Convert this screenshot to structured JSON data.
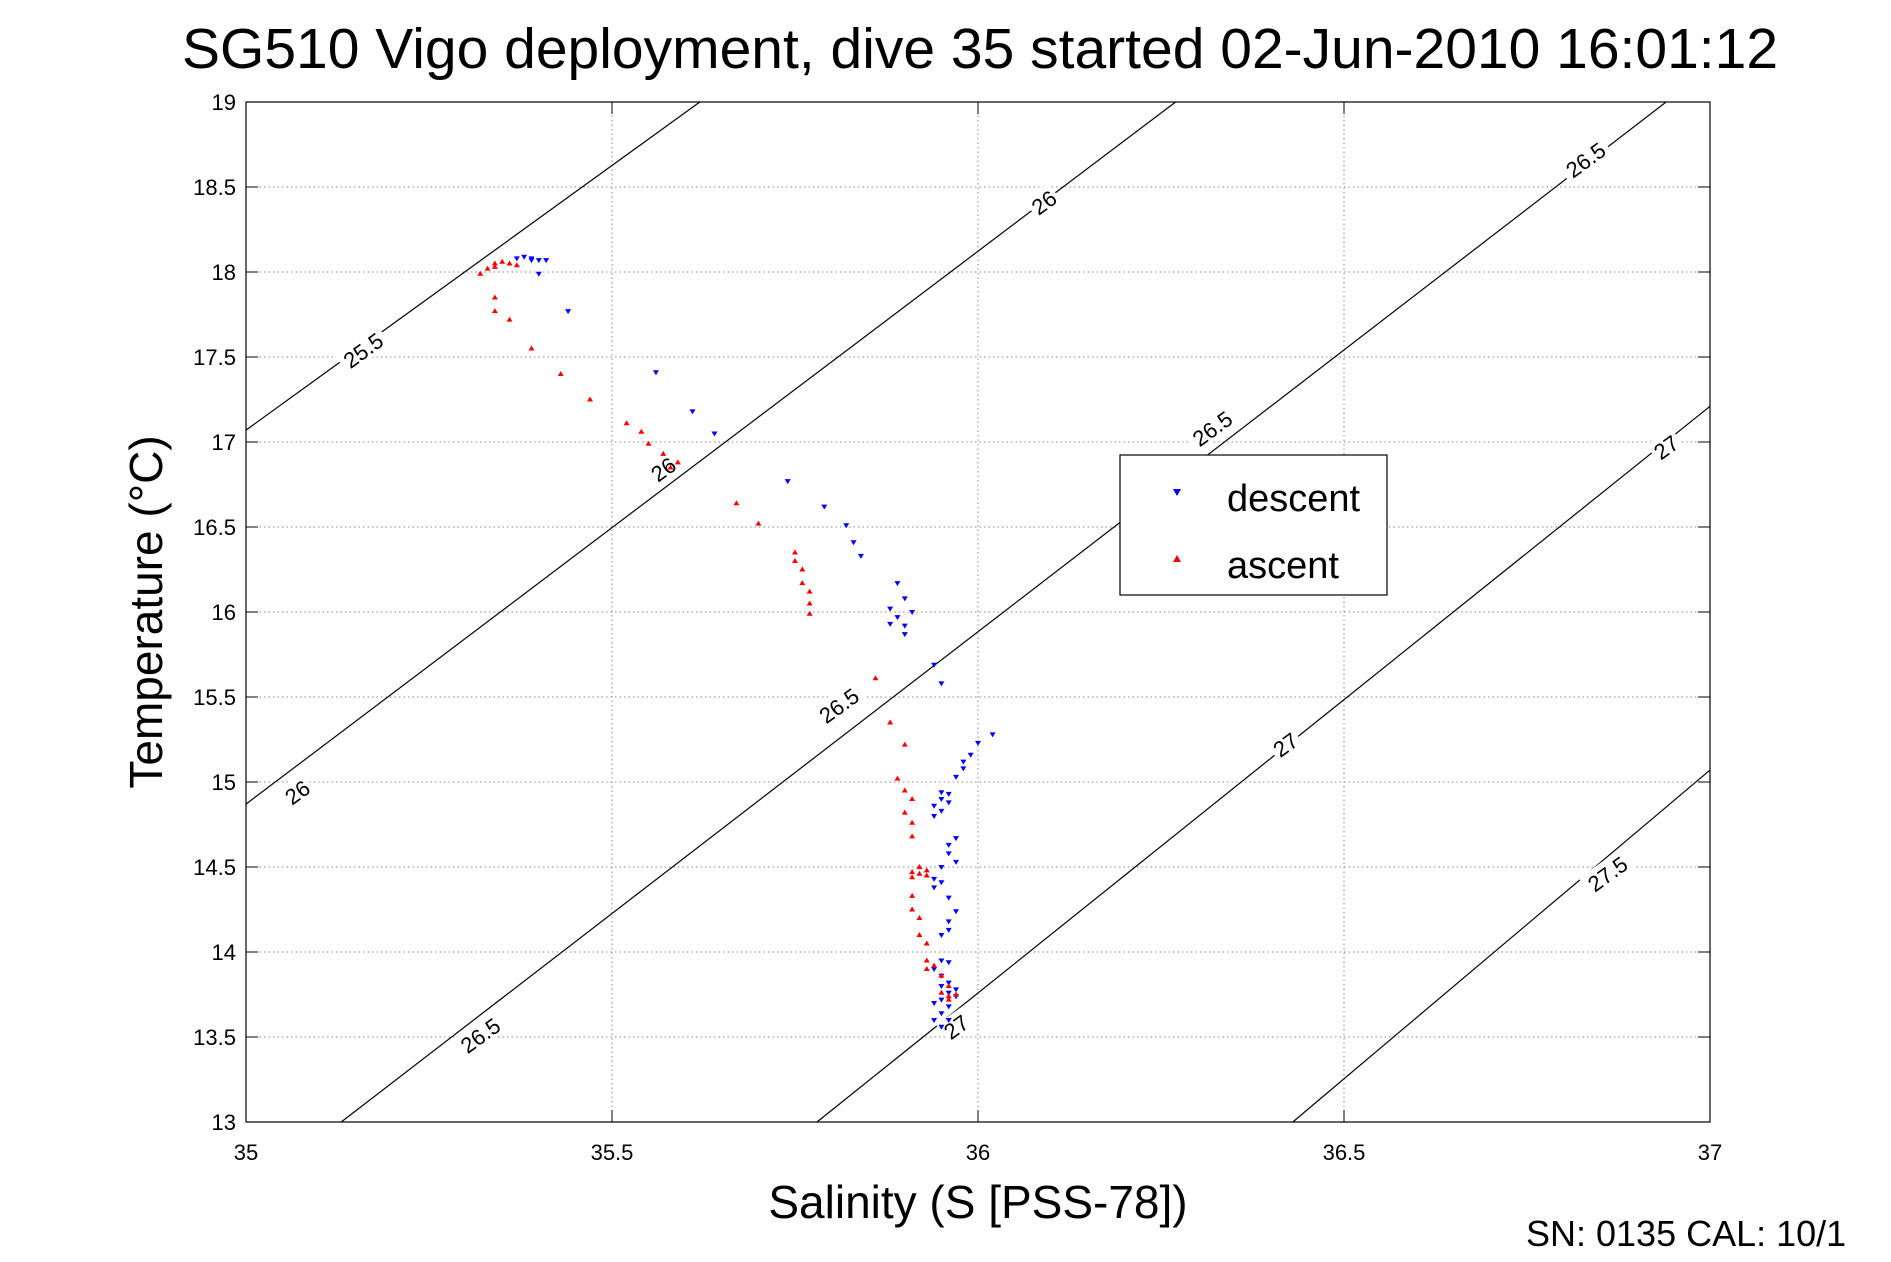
{
  "footer_text": "SN: 0135  CAL: 10/1",
  "chart_data": {
    "type": "scatter",
    "title": "SG510 Vigo deployment, dive 35 started 02-Jun-2010 16:01:12",
    "xlabel": "Salinity (S [PSS-78])",
    "ylabel": "Temperature (°C)",
    "xlim": [
      35,
      37
    ],
    "ylim": [
      13,
      19
    ],
    "xticks": [
      35,
      35.5,
      36,
      36.5,
      37
    ],
    "xtick_labels": [
      "35",
      "35.5",
      "36",
      "36.5",
      "37"
    ],
    "yticks": [
      13,
      13.5,
      14,
      14.5,
      15,
      15.5,
      16,
      16.5,
      17,
      17.5,
      18,
      18.5,
      19
    ],
    "ytick_labels": [
      "13",
      "13.5",
      "14",
      "14.5",
      "15",
      "15.5",
      "16",
      "16.5",
      "17",
      "17.5",
      "18",
      "18.5",
      "19"
    ],
    "grid": true,
    "legend_placement": "center-right",
    "colors": {
      "descent": "#0000ff",
      "ascent": "#ff0000",
      "contour": "#000000"
    },
    "density_contours": [
      {
        "label": "25.5",
        "points": [
          [
            35.0,
            17.07
          ],
          [
            35.62,
            19.0
          ]
        ]
      },
      {
        "label": "26",
        "points": [
          [
            35.0,
            14.87
          ],
          [
            36.27,
            19.0
          ]
        ]
      },
      {
        "label": "26.5",
        "points": [
          [
            35.13,
            13.0
          ],
          [
            36.94,
            19.0
          ]
        ]
      },
      {
        "label": "27",
        "points": [
          [
            35.78,
            13.0
          ],
          [
            37.0,
            17.21
          ]
        ]
      },
      {
        "label": "27.5",
        "points": [
          [
            36.43,
            13.0
          ],
          [
            37.0,
            15.07
          ]
        ]
      }
    ],
    "contour_labels": [
      {
        "text": "25.5",
        "x": 35.16,
        "y": 17.54,
        "rotation": -36
      },
      {
        "text": "26",
        "x": 35.07,
        "y": 14.94,
        "rotation": -36
      },
      {
        "text": "26",
        "x": 35.57,
        "y": 16.84,
        "rotation": -36
      },
      {
        "text": "26",
        "x": 36.09,
        "y": 18.41,
        "rotation": -36
      },
      {
        "text": "26.5",
        "x": 35.32,
        "y": 13.51,
        "rotation": -36
      },
      {
        "text": "26.5",
        "x": 35.81,
        "y": 15.45,
        "rotation": -36
      },
      {
        "text": "26.5",
        "x": 36.32,
        "y": 17.08,
        "rotation": -36
      },
      {
        "text": "26.5",
        "x": 36.83,
        "y": 18.66,
        "rotation": -36
      },
      {
        "text": "27",
        "x": 35.97,
        "y": 13.56,
        "rotation": -36
      },
      {
        "text": "27",
        "x": 36.42,
        "y": 15.22,
        "rotation": -36
      },
      {
        "text": "27",
        "x": 36.94,
        "y": 16.97,
        "rotation": -36
      },
      {
        "text": "27.5",
        "x": 36.86,
        "y": 14.46,
        "rotation": -36
      }
    ],
    "series": [
      {
        "name": "descent",
        "marker": "triangle-down",
        "points": [
          [
            35.37,
            18.08
          ],
          [
            35.38,
            18.09
          ],
          [
            35.39,
            18.08
          ],
          [
            35.4,
            18.07
          ],
          [
            35.41,
            18.07
          ],
          [
            35.39,
            18.07
          ],
          [
            35.4,
            17.99
          ],
          [
            35.44,
            17.77
          ],
          [
            35.56,
            17.41
          ],
          [
            35.61,
            17.18
          ],
          [
            35.64,
            17.05
          ],
          [
            35.74,
            16.77
          ],
          [
            35.79,
            16.62
          ],
          [
            35.82,
            16.51
          ],
          [
            35.83,
            16.41
          ],
          [
            35.84,
            16.33
          ],
          [
            35.89,
            16.17
          ],
          [
            35.9,
            16.08
          ],
          [
            35.88,
            16.02
          ],
          [
            35.91,
            16.0
          ],
          [
            35.89,
            15.97
          ],
          [
            35.88,
            15.93
          ],
          [
            35.9,
            15.92
          ],
          [
            35.9,
            15.87
          ],
          [
            35.94,
            15.69
          ],
          [
            35.95,
            15.58
          ],
          [
            36.02,
            15.28
          ],
          [
            36.0,
            15.23
          ],
          [
            35.99,
            15.16
          ],
          [
            35.98,
            15.12
          ],
          [
            35.98,
            15.08
          ],
          [
            35.97,
            15.03
          ],
          [
            35.95,
            14.94
          ],
          [
            35.96,
            14.93
          ],
          [
            35.95,
            14.9
          ],
          [
            35.96,
            14.88
          ],
          [
            35.94,
            14.86
          ],
          [
            35.95,
            14.83
          ],
          [
            35.94,
            14.8
          ],
          [
            35.97,
            14.67
          ],
          [
            35.96,
            14.63
          ],
          [
            35.96,
            14.58
          ],
          [
            35.97,
            14.53
          ],
          [
            35.95,
            14.5
          ],
          [
            35.94,
            14.43
          ],
          [
            35.95,
            14.41
          ],
          [
            35.94,
            14.38
          ],
          [
            35.96,
            14.32
          ],
          [
            35.97,
            14.24
          ],
          [
            35.96,
            14.18
          ],
          [
            35.96,
            14.13
          ],
          [
            35.95,
            14.1
          ],
          [
            35.95,
            13.95
          ],
          [
            35.96,
            13.94
          ],
          [
            35.94,
            13.9
          ],
          [
            35.95,
            13.86
          ],
          [
            35.96,
            13.82
          ],
          [
            35.95,
            13.8
          ],
          [
            35.96,
            13.76
          ],
          [
            35.97,
            13.74
          ],
          [
            35.95,
            13.72
          ],
          [
            35.94,
            13.7
          ],
          [
            35.96,
            13.68
          ],
          [
            35.95,
            13.64
          ],
          [
            35.96,
            13.6
          ],
          [
            35.95,
            13.56
          ],
          [
            35.94,
            13.6
          ],
          [
            35.97,
            13.78
          ]
        ]
      },
      {
        "name": "ascent",
        "marker": "triangle-up",
        "points": [
          [
            35.32,
            17.99
          ],
          [
            35.33,
            18.02
          ],
          [
            35.34,
            18.05
          ],
          [
            35.35,
            18.06
          ],
          [
            35.36,
            18.05
          ],
          [
            35.37,
            18.04
          ],
          [
            35.34,
            18.03
          ],
          [
            35.34,
            17.85
          ],
          [
            35.34,
            17.77
          ],
          [
            35.36,
            17.72
          ],
          [
            35.39,
            17.55
          ],
          [
            35.43,
            17.4
          ],
          [
            35.47,
            17.25
          ],
          [
            35.52,
            17.11
          ],
          [
            35.54,
            17.06
          ],
          [
            35.55,
            16.99
          ],
          [
            35.57,
            16.93
          ],
          [
            35.59,
            16.88
          ],
          [
            35.58,
            16.85
          ],
          [
            35.67,
            16.64
          ],
          [
            35.7,
            16.52
          ],
          [
            35.75,
            16.35
          ],
          [
            35.75,
            16.3
          ],
          [
            35.76,
            16.25
          ],
          [
            35.76,
            16.17
          ],
          [
            35.77,
            16.12
          ],
          [
            35.77,
            16.05
          ],
          [
            35.77,
            15.99
          ],
          [
            35.86,
            15.61
          ],
          [
            35.88,
            15.35
          ],
          [
            35.9,
            15.22
          ],
          [
            35.89,
            15.02
          ],
          [
            35.9,
            14.95
          ],
          [
            35.91,
            14.9
          ],
          [
            35.9,
            14.82
          ],
          [
            35.91,
            14.76
          ],
          [
            35.91,
            14.68
          ],
          [
            35.91,
            14.47
          ],
          [
            35.92,
            14.46
          ],
          [
            35.93,
            14.48
          ],
          [
            35.92,
            14.5
          ],
          [
            35.93,
            14.45
          ],
          [
            35.91,
            14.44
          ],
          [
            35.91,
            14.33
          ],
          [
            35.91,
            14.25
          ],
          [
            35.92,
            14.2
          ],
          [
            35.92,
            14.1
          ],
          [
            35.93,
            14.05
          ],
          [
            35.93,
            13.95
          ],
          [
            35.94,
            13.92
          ],
          [
            35.93,
            13.9
          ],
          [
            35.95,
            13.86
          ],
          [
            35.96,
            13.8
          ],
          [
            35.95,
            13.76
          ],
          [
            35.96,
            13.74
          ],
          [
            35.97,
            13.75
          ],
          [
            35.96,
            13.72
          ]
        ]
      }
    ]
  }
}
